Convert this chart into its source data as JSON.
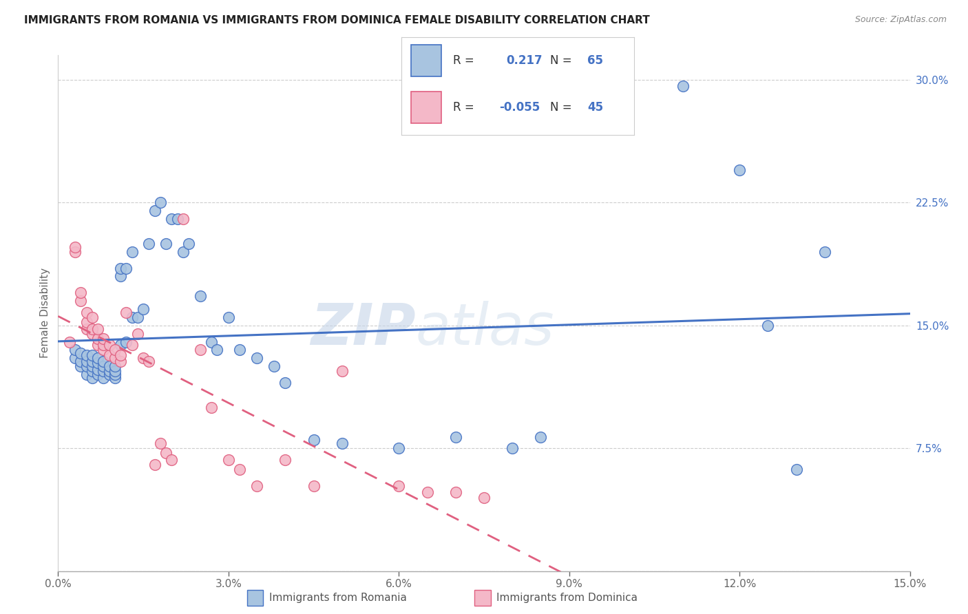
{
  "title": "IMMIGRANTS FROM ROMANIA VS IMMIGRANTS FROM DOMINICA FEMALE DISABILITY CORRELATION CHART",
  "source": "Source: ZipAtlas.com",
  "ylabel_label": "Female Disability",
  "right_yticks": [
    0.0,
    0.075,
    0.15,
    0.225,
    0.3
  ],
  "right_yticklabels": [
    "",
    "7.5%",
    "15.0%",
    "22.5%",
    "30.0%"
  ],
  "xlim": [
    0.0,
    0.15
  ],
  "ylim": [
    0.0,
    0.315
  ],
  "legend_R_romania": "0.217",
  "legend_N_romania": "65",
  "legend_R_dominica": "-0.055",
  "legend_N_dominica": "45",
  "romania_color": "#a8c4e0",
  "dominica_color": "#f4b8c8",
  "trendline_romania_color": "#4472c4",
  "trendline_dominica_color": "#e06080",
  "watermark_text": "ZIP",
  "watermark_text2": "atlas",
  "romania_x": [
    0.003,
    0.003,
    0.004,
    0.004,
    0.004,
    0.005,
    0.005,
    0.005,
    0.005,
    0.006,
    0.006,
    0.006,
    0.006,
    0.006,
    0.007,
    0.007,
    0.007,
    0.007,
    0.008,
    0.008,
    0.008,
    0.008,
    0.009,
    0.009,
    0.009,
    0.01,
    0.01,
    0.01,
    0.01,
    0.011,
    0.011,
    0.011,
    0.012,
    0.012,
    0.013,
    0.013,
    0.014,
    0.015,
    0.016,
    0.017,
    0.018,
    0.019,
    0.02,
    0.021,
    0.022,
    0.023,
    0.025,
    0.027,
    0.028,
    0.03,
    0.032,
    0.035,
    0.038,
    0.04,
    0.045,
    0.05,
    0.06,
    0.07,
    0.08,
    0.085,
    0.11,
    0.12,
    0.125,
    0.13,
    0.135
  ],
  "romania_y": [
    0.13,
    0.135,
    0.125,
    0.128,
    0.133,
    0.12,
    0.125,
    0.128,
    0.132,
    0.118,
    0.122,
    0.125,
    0.128,
    0.132,
    0.12,
    0.123,
    0.127,
    0.13,
    0.118,
    0.122,
    0.125,
    0.128,
    0.12,
    0.122,
    0.125,
    0.118,
    0.12,
    0.122,
    0.125,
    0.138,
    0.18,
    0.185,
    0.14,
    0.185,
    0.155,
    0.195,
    0.155,
    0.16,
    0.2,
    0.22,
    0.225,
    0.2,
    0.215,
    0.215,
    0.195,
    0.2,
    0.168,
    0.14,
    0.135,
    0.155,
    0.135,
    0.13,
    0.125,
    0.115,
    0.08,
    0.078,
    0.075,
    0.082,
    0.075,
    0.082,
    0.296,
    0.245,
    0.15,
    0.062,
    0.195
  ],
  "dominica_x": [
    0.002,
    0.003,
    0.003,
    0.004,
    0.004,
    0.005,
    0.005,
    0.005,
    0.006,
    0.006,
    0.006,
    0.007,
    0.007,
    0.007,
    0.008,
    0.008,
    0.008,
    0.009,
    0.009,
    0.01,
    0.01,
    0.011,
    0.011,
    0.012,
    0.013,
    0.014,
    0.015,
    0.016,
    0.017,
    0.018,
    0.019,
    0.02,
    0.022,
    0.025,
    0.027,
    0.03,
    0.032,
    0.035,
    0.04,
    0.045,
    0.05,
    0.06,
    0.065,
    0.07,
    0.075
  ],
  "dominica_y": [
    0.14,
    0.195,
    0.198,
    0.165,
    0.17,
    0.148,
    0.152,
    0.158,
    0.145,
    0.148,
    0.155,
    0.138,
    0.142,
    0.148,
    0.135,
    0.138,
    0.142,
    0.132,
    0.138,
    0.13,
    0.135,
    0.128,
    0.132,
    0.158,
    0.138,
    0.145,
    0.13,
    0.128,
    0.065,
    0.078,
    0.072,
    0.068,
    0.215,
    0.135,
    0.1,
    0.068,
    0.062,
    0.052,
    0.068,
    0.052,
    0.122,
    0.052,
    0.048,
    0.048,
    0.045
  ]
}
